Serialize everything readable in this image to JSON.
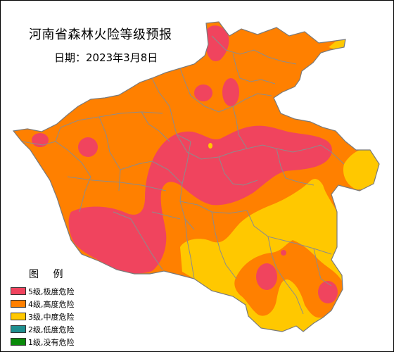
{
  "title": "河南省森林火险等级预报",
  "date_label": "日期：2023年3月8日",
  "legend": {
    "title": "图 例",
    "items": [
      {
        "label": "5级,极度危险",
        "color": "#f0445e"
      },
      {
        "label": "4级,高度危险",
        "color": "#ff8000"
      },
      {
        "label": "3级,中度危险",
        "color": "#ffc800"
      },
      {
        "label": "2级,低度危险",
        "color": "#1f8f8f"
      },
      {
        "label": "1级,没有危险",
        "color": "#0a8a0a"
      }
    ]
  },
  "colors": {
    "level5": "#f0445e",
    "level4": "#ff8000",
    "level3": "#ffc800",
    "boundary": "#8c8c8c"
  }
}
